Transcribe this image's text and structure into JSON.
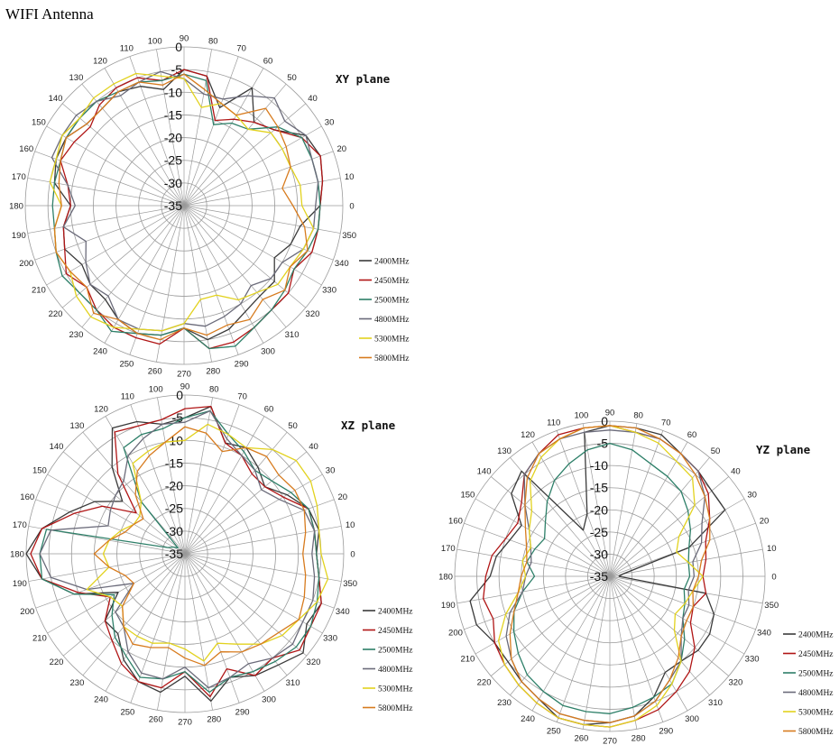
{
  "title": "WIFI Antenna",
  "chart_data": [
    {
      "type": "polar-line",
      "plane_label": "XY plane",
      "angle_ticks": [
        0,
        10,
        20,
        30,
        40,
        50,
        60,
        70,
        80,
        90,
        100,
        110,
        120,
        130,
        140,
        150,
        160,
        170,
        180,
        190,
        200,
        210,
        220,
        230,
        240,
        250,
        260,
        270,
        280,
        290,
        300,
        310,
        320,
        330,
        340,
        350
      ],
      "radial_ticks": [
        0,
        -5,
        -10,
        -15,
        -20,
        -25,
        -30,
        -35
      ],
      "rlim": [
        -35,
        0
      ],
      "legend_position": "right",
      "series": [
        {
          "name": "2400MHz",
          "color": "#3a3a3a",
          "values": [
            -5,
            -4,
            -3,
            -4,
            -9,
            -11,
            -5,
            -12,
            -6,
            -5,
            -9,
            -7,
            -6,
            -7,
            -7,
            -5,
            -5,
            -6,
            -10,
            -8,
            -7,
            -9,
            -8,
            -8,
            -6,
            -5,
            -6,
            -8,
            -5,
            -6,
            -8,
            -9,
            -9,
            -12,
            -10,
            -9
          ]
        },
        {
          "name": "2450MHz",
          "color": "#b01515",
          "values": [
            -5,
            -4,
            -3,
            -5,
            -9,
            -11,
            -13,
            -15,
            -6,
            -5,
            -7,
            -5,
            -5,
            -6,
            -8,
            -7,
            -6,
            -9,
            -10,
            -8,
            -7,
            -5,
            -7,
            -5,
            -4,
            -4,
            -4,
            -8,
            -3,
            -3,
            -4,
            -5,
            -5,
            -7,
            -5,
            -5
          ]
        },
        {
          "name": "2500MHz",
          "color": "#2d7f68",
          "values": [
            -5,
            -5,
            -5,
            -5,
            -8,
            -13,
            -14,
            -16,
            -7,
            -6,
            -7,
            -6,
            -6,
            -5,
            -5,
            -5,
            -6,
            -6,
            -6,
            -6,
            -5,
            -4,
            -5,
            -5,
            -3,
            -5,
            -6,
            -8,
            -3,
            -2,
            -4,
            -5,
            -6,
            -7,
            -6,
            -5
          ]
        },
        {
          "name": "4800MHz",
          "color": "#6b6b7a",
          "values": [
            -6,
            -5,
            -5,
            -4,
            -6,
            -4,
            -7,
            -10,
            -10,
            -7,
            -5,
            -6,
            -7,
            -5,
            -4,
            -4,
            -4,
            -9,
            -11,
            -8,
            -12,
            -10,
            -8,
            -9,
            -6,
            -6,
            -7,
            -9,
            -8,
            -9,
            -10,
            -12,
            -10,
            -10,
            -7,
            -6
          ]
        },
        {
          "name": "5300MHz",
          "color": "#e2d21e",
          "values": [
            -9,
            -9,
            -10,
            -10,
            -10,
            -13,
            -12,
            -11,
            -13,
            -7,
            -6,
            -4,
            -4,
            -4,
            -5,
            -4,
            -5,
            -5,
            -8,
            -6,
            -5,
            -6,
            -4,
            -3,
            -4,
            -6,
            -7,
            -9,
            -14,
            -14,
            -11,
            -10,
            -8,
            -8,
            -7,
            -6
          ]
        },
        {
          "name": "5800MHz",
          "color": "#d77b1e",
          "values": [
            -11,
            -13,
            -10,
            -9,
            -8,
            -7,
            -12,
            -11,
            -9,
            -6,
            -8,
            -6,
            -6,
            -7,
            -7,
            -5,
            -6,
            -7,
            -8,
            -6,
            -5,
            -6,
            -7,
            -4,
            -6,
            -5,
            -5,
            -8,
            -6,
            -7,
            -6,
            -8,
            -6,
            -8,
            -6,
            -8
          ]
        }
      ]
    },
    {
      "type": "polar-line",
      "plane_label": "XZ plane",
      "angle_ticks": [
        0,
        10,
        20,
        30,
        40,
        50,
        60,
        70,
        80,
        90,
        100,
        110,
        120,
        130,
        140,
        150,
        160,
        170,
        180,
        190,
        200,
        210,
        220,
        230,
        240,
        250,
        260,
        270,
        280,
        290,
        300,
        310,
        320,
        330,
        340,
        350
      ],
      "radial_ticks": [
        0,
        -5,
        -10,
        -15,
        -20,
        -25,
        -30,
        -35
      ],
      "rlim": [
        -35,
        0
      ],
      "legend_position": "right",
      "series": [
        {
          "name": "2400MHz",
          "color": "#3a3a3a",
          "values": [
            -6,
            -5,
            -6,
            -9,
            -12,
            -10,
            -8,
            -9,
            -2,
            -5,
            -6,
            -4,
            -3,
            -10,
            -17,
            -12,
            -8,
            -3,
            0,
            -3,
            -9,
            -18,
            -12,
            -12,
            -8,
            -5,
            -4,
            -8,
            -2,
            -6,
            -4,
            -3,
            -1,
            -4,
            -3,
            -5
          ]
        },
        {
          "name": "2450MHz",
          "color": "#b01515",
          "values": [
            -6,
            -6,
            -6,
            -10,
            -12,
            -12,
            -10,
            -9,
            -2,
            -3,
            -5,
            -5,
            -4,
            -12,
            -21,
            -14,
            -9,
            -3,
            -1,
            -3,
            -10,
            -16,
            -12,
            -10,
            -7,
            -5,
            -5,
            -9,
            -3,
            -8,
            -4,
            -5,
            -2,
            -3,
            -3,
            -5
          ]
        },
        {
          "name": "2500MHz",
          "color": "#2d7f68",
          "values": [
            -6,
            -6,
            -6,
            -8,
            -10,
            -11,
            -9,
            -7,
            -3,
            -5,
            -7,
            -7,
            -8,
            -20,
            -33,
            -32,
            -31,
            -4,
            -3,
            -3,
            -9,
            -17,
            -14,
            -11,
            -9,
            -6,
            -7,
            -9,
            -4,
            -6,
            -5,
            -4,
            -3,
            -3,
            -4,
            -5
          ]
        },
        {
          "name": "4800MHz",
          "color": "#6b6b7a",
          "values": [
            -7,
            -6,
            -7,
            -11,
            -13,
            -11,
            -10,
            -8,
            -3,
            -6,
            -6,
            -8,
            -10,
            -14,
            -15,
            -16,
            -17,
            -5,
            -3,
            -5,
            -12,
            -22,
            -15,
            -14,
            -10,
            -7,
            -7,
            -10,
            -5,
            -6,
            -7,
            -5,
            -4,
            -5,
            -5,
            -6
          ]
        },
        {
          "name": "5300MHz",
          "color": "#e2d21e",
          "values": [
            -5,
            -5,
            -4,
            -3,
            -3,
            -5,
            -8,
            -7,
            -6,
            -10,
            -10,
            -11,
            -12,
            -20,
            -22,
            -22,
            -20,
            -18,
            -17,
            -18,
            -12,
            -16,
            -17,
            -14,
            -14,
            -14,
            -15,
            -14,
            -11,
            -14,
            -12,
            -9,
            -7,
            -6,
            -4,
            -3
          ]
        },
        {
          "name": "5800MHz",
          "color": "#d77b1e",
          "values": [
            -9,
            -8,
            -7,
            -7,
            -8,
            -7,
            -8,
            -11,
            -8,
            -7,
            -10,
            -12,
            -14,
            -18,
            -23,
            -22,
            -21,
            -18,
            -15,
            -18,
            -21,
            -22,
            -17,
            -14,
            -12,
            -13,
            -14,
            -12,
            -10,
            -12,
            -10,
            -9,
            -8,
            -6,
            -7,
            -8
          ]
        }
      ]
    },
    {
      "type": "polar-line",
      "plane_label": "YZ plane",
      "angle_ticks": [
        0,
        10,
        20,
        30,
        40,
        50,
        60,
        70,
        80,
        90,
        100,
        110,
        120,
        130,
        140,
        150,
        160,
        170,
        180,
        190,
        200,
        210,
        220,
        230,
        240,
        250,
        260,
        270,
        280,
        290,
        300,
        310,
        320,
        330,
        340,
        350
      ],
      "radial_ticks": [
        0,
        -5,
        -10,
        -15,
        -20,
        -25,
        -30,
        -35
      ],
      "rlim": [
        -35,
        0
      ],
      "legend_position": "right",
      "series": [
        {
          "name": "2400MHz",
          "color": "#3a3a3a",
          "values": [
            -33,
            -32,
            -16,
            -5,
            -5,
            -4,
            -3,
            -1,
            -1,
            -1,
            -2,
            -20,
            -23,
            -4,
            -6,
            -12,
            -11,
            -9,
            -8,
            -3,
            -3,
            -5,
            -5,
            -4,
            -3,
            -1,
            -1,
            -2,
            -3,
            -6,
            -10,
            -10,
            -9,
            -9,
            -10,
            -13
          ]
        },
        {
          "name": "2450MHz",
          "color": "#b01515",
          "values": [
            -14,
            -13,
            -12,
            -9,
            -6,
            -4,
            -3,
            -2,
            -2,
            -1,
            -1,
            -1,
            -3,
            -5,
            -9,
            -11,
            -10,
            -8,
            -7,
            -6,
            -7,
            -5,
            -4,
            -3,
            -2,
            -1,
            -1,
            -1,
            -2,
            -3,
            -5,
            -7,
            -10,
            -14,
            -15,
            -13
          ]
        },
        {
          "name": "2500MHz",
          "color": "#2d7f68",
          "values": [
            -17,
            -17,
            -16,
            -14,
            -12,
            -10,
            -9,
            -8,
            -6,
            -5,
            -6,
            -8,
            -10,
            -13,
            -16,
            -18,
            -17,
            -16,
            -18,
            -15,
            -12,
            -10,
            -8,
            -6,
            -5,
            -4,
            -4,
            -4,
            -5,
            -6,
            -7,
            -10,
            -13,
            -16,
            -17,
            -18
          ]
        },
        {
          "name": "4800MHz",
          "color": "#6b6b7a",
          "values": [
            -16,
            -16,
            -13,
            -11,
            -7,
            -4,
            -3,
            -2,
            -2,
            -2,
            -2,
            -2,
            -3,
            -5,
            -10,
            -14,
            -16,
            -17,
            -16,
            -15,
            -11,
            -8,
            -6,
            -4,
            -3,
            -2,
            -2,
            -2,
            -3,
            -5,
            -8,
            -10,
            -14,
            -16,
            -16,
            -17
          ]
        },
        {
          "name": "5300MHz",
          "color": "#e2d21e",
          "values": [
            -14,
            -17,
            -19,
            -17,
            -10,
            -6,
            -5,
            -3,
            -2,
            -1,
            -1,
            -2,
            -4,
            -7,
            -12,
            -14,
            -16,
            -15,
            -16,
            -14,
            -10,
            -6,
            -4,
            -3,
            -2,
            -1,
            -1,
            -1,
            -2,
            -4,
            -7,
            -10,
            -16,
            -18,
            -17,
            -16
          ]
        },
        {
          "name": "5800MHz",
          "color": "#d77b1e",
          "values": [
            -15,
            -14,
            -11,
            -9,
            -7,
            -5,
            -3,
            -2,
            -1,
            -1,
            -1,
            -2,
            -3,
            -6,
            -10,
            -13,
            -15,
            -16,
            -15,
            -14,
            -12,
            -9,
            -6,
            -4,
            -3,
            -2,
            -2,
            -2,
            -3,
            -5,
            -8,
            -11,
            -14,
            -15,
            -15,
            -16
          ]
        }
      ]
    }
  ]
}
